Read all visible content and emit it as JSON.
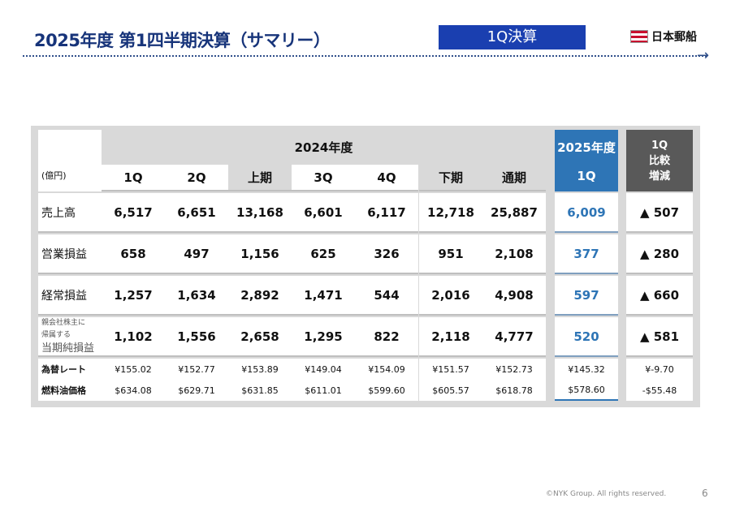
{
  "header": {
    "title": "2025年度 第1四半期決算（サマリー）",
    "badge": "1Q決算",
    "logo": "日本郵船"
  },
  "table": {
    "unit": "(億円)",
    "fy2024": "2024年度",
    "fy2025": "2025年度",
    "fy2025_q": "1Q",
    "diff_header": [
      "1Q",
      "比較",
      "増減"
    ],
    "columns": [
      "1Q",
      "2Q",
      "上期",
      "3Q",
      "4Q",
      "下期",
      "通期"
    ],
    "rows": [
      {
        "label": "売上高",
        "values": [
          "6,517",
          "6,651",
          "13,168",
          "6,601",
          "6,117",
          "12,718",
          "25,887"
        ],
        "fy2025": "6,009",
        "diff": "▲ 507"
      },
      {
        "label": "営業損益",
        "values": [
          "658",
          "497",
          "1,156",
          "625",
          "326",
          "951",
          "2,108"
        ],
        "fy2025": "377",
        "diff": "▲ 280"
      },
      {
        "label": "経常損益",
        "values": [
          "1,257",
          "1,634",
          "2,892",
          "1,471",
          "544",
          "2,016",
          "4,908"
        ],
        "fy2025": "597",
        "diff": "▲ 660"
      },
      {
        "label_lines": [
          "親会社株主に",
          "帰属する",
          "当期純損益"
        ],
        "values": [
          "1,102",
          "1,556",
          "2,658",
          "1,295",
          "822",
          "2,118",
          "4,777"
        ],
        "fy2025": "520",
        "diff": "▲ 581"
      }
    ],
    "sub_rows": [
      {
        "label": "為替レート",
        "values": [
          "¥155.02",
          "¥152.77",
          "¥153.89",
          "¥149.04",
          "¥154.09",
          "¥151.57",
          "¥152.73"
        ],
        "fy2025": "¥145.32",
        "diff": "¥-9.70"
      },
      {
        "label": "燃料油価格",
        "values": [
          "$634.08",
          "$629.71",
          "$631.85",
          "$611.01",
          "$599.60",
          "$605.57",
          "$618.78"
        ],
        "fy2025": "$578.60",
        "diff": "-$55.48"
      }
    ]
  },
  "colors": {
    "title": "#17347a",
    "badge": "#1a3fb0",
    "fy2025": "#2e75b6",
    "diff_header": "#595959"
  },
  "footer": {
    "copyright": "©NYK Group. All rights reserved.",
    "page": "6"
  }
}
